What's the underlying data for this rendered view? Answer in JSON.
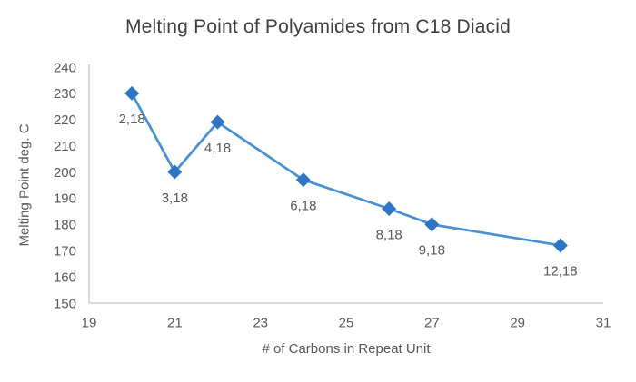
{
  "chart_data": {
    "type": "line",
    "title": "Melting Point of Polyamides from C18 Diacid",
    "xlabel": "# of Carbons in Repeat Unit",
    "ylabel": "Melting Point deg. C",
    "xlim": [
      19,
      31
    ],
    "ylim": [
      150,
      240
    ],
    "x_ticks": [
      19,
      21,
      23,
      25,
      27,
      29,
      31
    ],
    "y_ticks": [
      150,
      160,
      170,
      180,
      190,
      200,
      210,
      220,
      230,
      240
    ],
    "grid": false,
    "legend": "none",
    "marker": "diamond",
    "series": [
      {
        "name": "Melting Point deg. C",
        "points": [
          {
            "x": 20,
            "y": 230,
            "label": "2,18"
          },
          {
            "x": 21,
            "y": 200,
            "label": "3,18"
          },
          {
            "x": 22,
            "y": 219,
            "label": "4,18"
          },
          {
            "x": 24,
            "y": 197,
            "label": "6,18"
          },
          {
            "x": 26,
            "y": 186,
            "label": "8,18"
          },
          {
            "x": 27,
            "y": 180,
            "label": "9,18"
          },
          {
            "x": 30,
            "y": 172,
            "label": "12,18"
          }
        ]
      }
    ]
  },
  "colors": {
    "line": "#4a90d5",
    "marker": "#2e75c6",
    "axis_line": "#c6c6c6",
    "axis_text": "#595959",
    "title_text": "#3f3f3f",
    "background": "#ffffff"
  }
}
